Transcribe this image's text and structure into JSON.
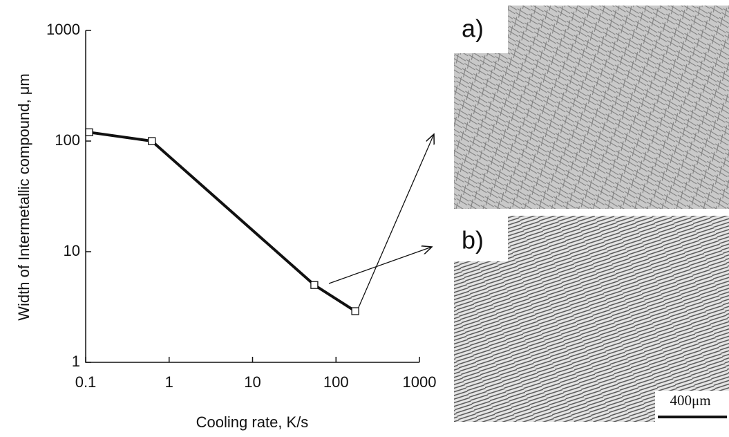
{
  "chart_data": {
    "type": "line",
    "xlabel": "Cooling rate, K/s",
    "ylabel": "Width of Intermetallic compound, μm",
    "x": [
      0.11,
      0.62,
      55,
      170
    ],
    "series": [
      {
        "color": "#111111",
        "values": [
          120,
          100,
          5,
          2.9
        ]
      }
    ],
    "xlim": [
      0.1,
      1000
    ],
    "ylim": [
      1,
      1000
    ],
    "xticks": [
      0.1,
      1,
      10,
      100,
      1000
    ],
    "yticks": [
      1,
      10,
      100,
      1000
    ],
    "xscale": "log",
    "yscale": "log",
    "grid": false
  },
  "micrographs": {
    "labels": [
      "a)",
      "b)"
    ],
    "scale_bar": "400μm"
  }
}
